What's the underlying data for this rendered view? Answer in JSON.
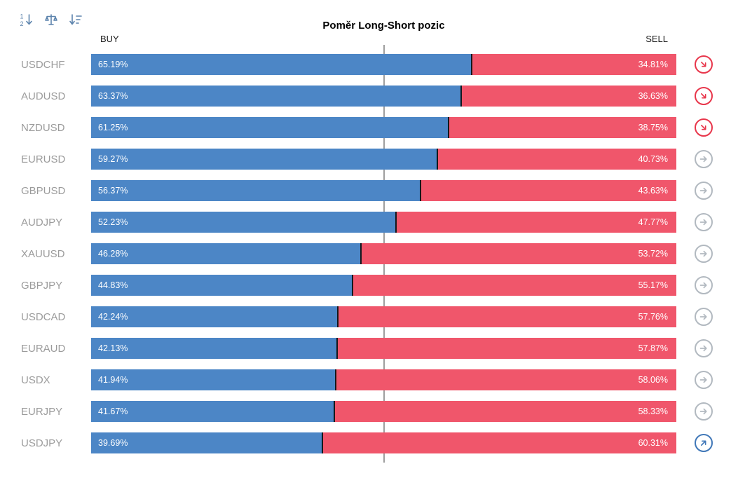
{
  "title": "Poměr Long-Short pozic",
  "header": {
    "buy_label": "BUY",
    "sell_label": "SELL"
  },
  "toolbar": {
    "icons": [
      "sort-numeric-icon",
      "compare-balance-icon",
      "sort-amount-icon"
    ]
  },
  "colors": {
    "buy": "#4c86c6",
    "sell": "#f0566b",
    "label": "#9b9b9b",
    "title": "#000000",
    "header": "#1d1d1d",
    "center_line": "#9e9e9e",
    "icon": "#5d84ad",
    "bar_divider": "#14181c",
    "trend_down": "#e8364b",
    "trend_flat": "#b2b9c0",
    "trend_up": "#4178b8"
  },
  "rows": [
    {
      "pair": "USDCHF",
      "buy": "65.19%",
      "sell": "34.81%",
      "buy_pct": 65.19,
      "trend": "down"
    },
    {
      "pair": "AUDUSD",
      "buy": "63.37%",
      "sell": "36.63%",
      "buy_pct": 63.37,
      "trend": "down"
    },
    {
      "pair": "NZDUSD",
      "buy": "61.25%",
      "sell": "38.75%",
      "buy_pct": 61.25,
      "trend": "down"
    },
    {
      "pair": "EURUSD",
      "buy": "59.27%",
      "sell": "40.73%",
      "buy_pct": 59.27,
      "trend": "flat"
    },
    {
      "pair": "GBPUSD",
      "buy": "56.37%",
      "sell": "43.63%",
      "buy_pct": 56.37,
      "trend": "flat"
    },
    {
      "pair": "AUDJPY",
      "buy": "52.23%",
      "sell": "47.77%",
      "buy_pct": 52.23,
      "trend": "flat"
    },
    {
      "pair": "XAUUSD",
      "buy": "46.28%",
      "sell": "53.72%",
      "buy_pct": 46.28,
      "trend": "flat"
    },
    {
      "pair": "GBPJPY",
      "buy": "44.83%",
      "sell": "55.17%",
      "buy_pct": 44.83,
      "trend": "flat"
    },
    {
      "pair": "USDCAD",
      "buy": "42.24%",
      "sell": "57.76%",
      "buy_pct": 42.24,
      "trend": "flat"
    },
    {
      "pair": "EURAUD",
      "buy": "42.13%",
      "sell": "57.87%",
      "buy_pct": 42.13,
      "trend": "flat"
    },
    {
      "pair": "USDX",
      "buy": "41.94%",
      "sell": "58.06%",
      "buy_pct": 41.94,
      "trend": "flat"
    },
    {
      "pair": "EURJPY",
      "buy": "41.67%",
      "sell": "58.33%",
      "buy_pct": 41.67,
      "trend": "flat"
    },
    {
      "pair": "USDJPY",
      "buy": "39.69%",
      "sell": "60.31%",
      "buy_pct": 39.69,
      "trend": "up"
    }
  ],
  "chart_data": {
    "type": "bar",
    "orientation": "horizontal",
    "stacked": true,
    "title": "Poměr Long-Short pozic",
    "categories": [
      "USDCHF",
      "AUDUSD",
      "NZDUSD",
      "EURUSD",
      "GBPUSD",
      "AUDJPY",
      "XAUUSD",
      "GBPJPY",
      "USDCAD",
      "EURAUD",
      "USDX",
      "EURJPY",
      "USDJPY"
    ],
    "series": [
      {
        "name": "BUY",
        "color": "#4c86c6",
        "values": [
          65.19,
          63.37,
          61.25,
          59.27,
          56.37,
          52.23,
          46.28,
          44.83,
          42.24,
          42.13,
          41.94,
          41.67,
          39.69
        ]
      },
      {
        "name": "SELL",
        "color": "#f0566b",
        "values": [
          34.81,
          36.63,
          38.75,
          40.73,
          43.63,
          47.77,
          53.72,
          55.17,
          57.76,
          57.87,
          58.06,
          58.33,
          60.31
        ]
      }
    ],
    "xlim": [
      0,
      100
    ],
    "reference_line": 50,
    "grid": false,
    "legend_position": "top (BUY left, SELL right)",
    "value_labels": "inside bars, percent with two decimals"
  }
}
